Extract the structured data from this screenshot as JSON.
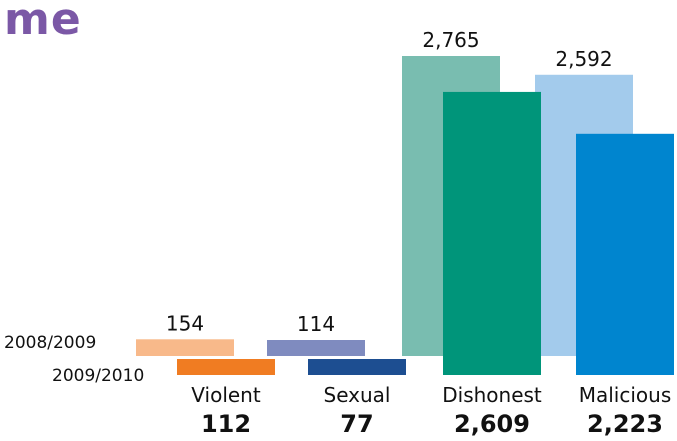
{
  "title_fragment": "me",
  "chart_data": {
    "type": "bar",
    "categories": [
      "Violent",
      "Sexual",
      "Dishonest",
      "Malicious"
    ],
    "series": [
      {
        "name": "2008/2009",
        "values": [
          154,
          114,
          2765,
          2592
        ],
        "value_labels": [
          "154",
          "114",
          "2,765",
          "2,592"
        ],
        "colors": [
          "#f8b98a",
          "#7f8bbf",
          "#79bdb0",
          "#a3cbec"
        ]
      },
      {
        "name": "2009/2010",
        "values": [
          112,
          77,
          2609,
          2223
        ],
        "value_labels": [
          "112",
          "77",
          "2,609",
          "2,223"
        ],
        "colors": [
          "#f07c22",
          "#1d4e91",
          "#00957a",
          "#0085cf"
        ]
      }
    ],
    "legend_placement": "left, beside bar bases",
    "grid": false,
    "axes_visible": false
  }
}
